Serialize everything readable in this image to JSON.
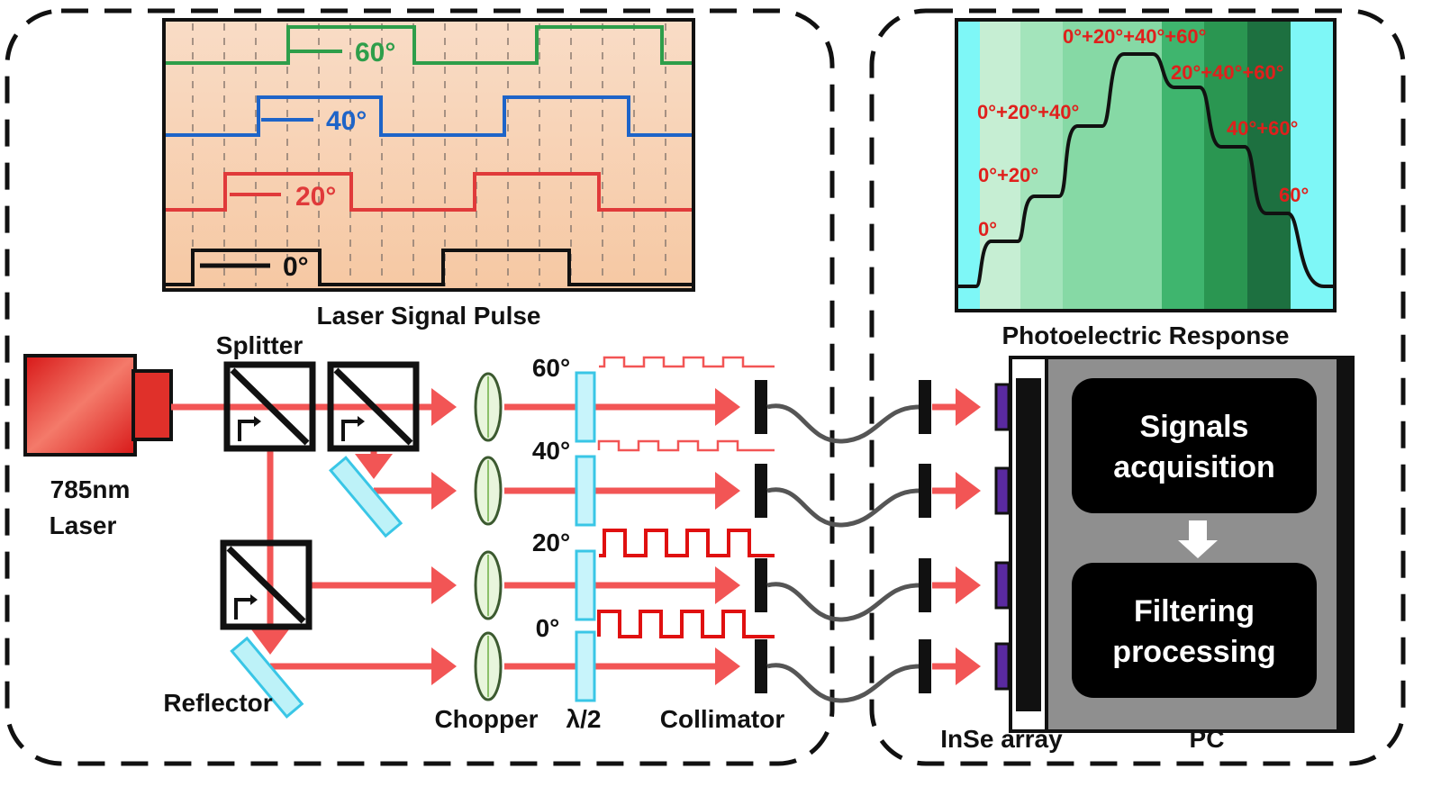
{
  "pulse_panel": {
    "title": "Laser Signal Pulse",
    "traces": [
      {
        "label": "60°",
        "color": "#2e9e4a"
      },
      {
        "label": "40°",
        "color": "#1e64c8"
      },
      {
        "label": "20°",
        "color": "#e03a3a"
      },
      {
        "label": "0°",
        "color": "#111111"
      }
    ],
    "background": "#f8d6bb"
  },
  "response_panel": {
    "title": "Photoelectric Response",
    "steps": [
      "0°",
      "0°+20°",
      "0°+20°+40°",
      "0°+20°+40°+60°",
      "20°+40°+60°",
      "40°+60°",
      "60°"
    ],
    "label_color": "#e0201c"
  },
  "setup": {
    "laser_line1": "785nm",
    "laser_line2": "Laser",
    "splitter": "Splitter",
    "reflector": "Reflector",
    "chopper": "Chopper",
    "half_wave": "λ/2",
    "collimator": "Collimator",
    "channels": [
      "60°",
      "40°",
      "20°",
      "0°"
    ],
    "beam_color": "#f25555"
  },
  "detector": {
    "array_label": "InSe array",
    "pc_label": "PC",
    "box1_line1": "Signals",
    "box1_line2": "acquisition",
    "box2_line1": "Filtering",
    "box2_line2": "processing"
  }
}
